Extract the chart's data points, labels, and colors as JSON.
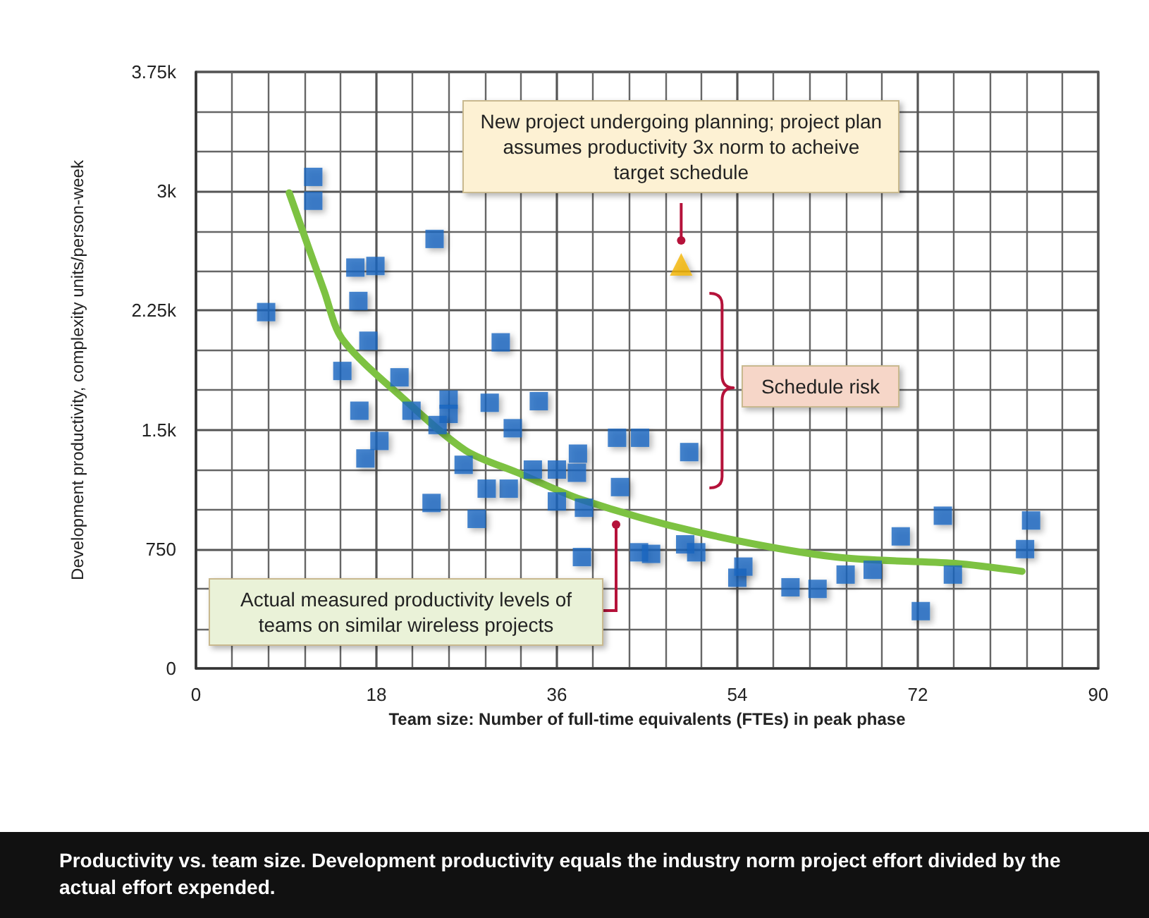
{
  "chart_data": {
    "type": "scatter",
    "xlabel": "Team size: Number of full-time equivalents (FTEs) in peak phase",
    "ylabel": "Development productivity, complexity units/person-week",
    "xlim": [
      0,
      90
    ],
    "xticks": [
      0,
      18,
      36,
      54,
      72,
      90
    ],
    "ylim": [
      0,
      3750
    ],
    "yticks": [
      0,
      {
        "value": 750,
        "label": "750"
      },
      {
        "value": 1500,
        "label": "1.5k"
      },
      {
        "value": 2250,
        "label": "2.25k"
      },
      {
        "value": 3000,
        "label": "3k"
      },
      {
        "value": 3750,
        "label": "3.75k"
      }
    ],
    "grid": true,
    "series": [
      {
        "marker": "square",
        "color": "#1565c0",
        "x": [
          7.0,
          11.7,
          11.7,
          15.9,
          17.9,
          16.2,
          17.2,
          23.8,
          30.4,
          14.6,
          20.3,
          16.3,
          21.5,
          25.2,
          25.2,
          24.1,
          18.3,
          16.9,
          29.3,
          34.2,
          31.6,
          26.7,
          33.6,
          36.0,
          31.2,
          29.0,
          23.5,
          28.0,
          38.1,
          38.0,
          36.0,
          38.7,
          38.5,
          42.0,
          44.3,
          42.3,
          49.2,
          44.2,
          45.4,
          48.8,
          49.9,
          54.0,
          54.6,
          59.3,
          62.0,
          64.8,
          67.5,
          70.3,
          72.3,
          74.5,
          75.5,
          82.7,
          83.3
        ],
        "values": [
          2240,
          3090,
          2940,
          2520,
          2530,
          2310,
          2060,
          2700,
          2050,
          1870,
          1830,
          1620,
          1620,
          1690,
          1600,
          1530,
          1430,
          1320,
          1670,
          1680,
          1510,
          1280,
          1250,
          1250,
          1130,
          1130,
          1040,
          940,
          1350,
          1230,
          1050,
          1010,
          700,
          1450,
          1450,
          1140,
          1360,
          730,
          720,
          780,
          730,
          570,
          640,
          510,
          500,
          590,
          620,
          830,
          360,
          960,
          590,
          750,
          930
        ]
      },
      {
        "type": "line",
        "marker": "none",
        "color": "#7dc242",
        "x": [
          9.3,
          12.8,
          14.6,
          20.8,
          26.9,
          32.1,
          38.5,
          49.8,
          63.8,
          75.7,
          82.4
        ],
        "values": [
          2990,
          2370,
          2070,
          1690,
          1370,
          1230,
          1060,
          860,
          700,
          660,
          610
        ]
      },
      {
        "type": "scatter",
        "marker": "triangle",
        "color": "#f2b400",
        "x": [
          48.4
        ],
        "values": [
          2540
        ]
      }
    ],
    "annotations": [
      "New project undergoing planning; project plan assumes productivity 3x norm to acheive target schedule",
      "Schedule risk",
      "Actual measured productivity levels of teams on similar wireless projects",
      "Productivity vs. team size. Development productivity equals the industry norm project effort divided by the actual effort expended."
    ]
  }
}
